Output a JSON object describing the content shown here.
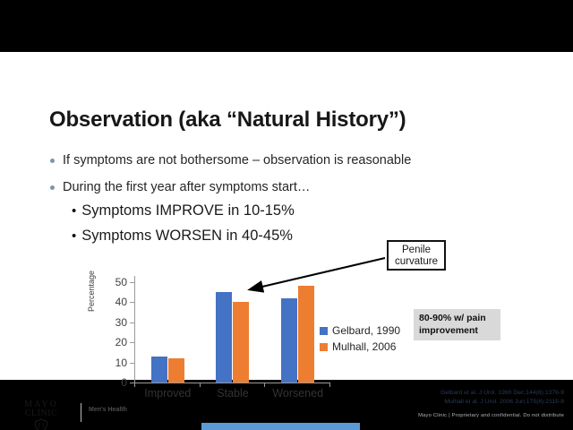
{
  "slide": {
    "title": "Observation (aka “Natural History”)",
    "bullets": [
      {
        "text": "If symptoms are not bothersome – observation is reasonable"
      },
      {
        "text": "During the first year after symptoms start…"
      }
    ],
    "sub_bullets": [
      {
        "text": "Symptoms IMPROVE in 10-15%"
      },
      {
        "text": "Symptoms WORSEN in 40-45%"
      }
    ],
    "callout": {
      "text": "Penile\ncurvature"
    },
    "highlight_box": {
      "text": "80-90% w/ pain\nimprovement"
    },
    "citations": [
      "Gelbard et al. J Urol. 1990 Dec;144(6):1376-9",
      "Mulhall et al. J Urol. 2006 Jun;175(6):2115-8"
    ],
    "footer": "Mayo Clinic  |  Proprietary and confidential. Do not distribute",
    "logo": {
      "line1": "MAYO",
      "line2": "CLINIC",
      "tagline": "Men's Health"
    }
  },
  "chart_data": {
    "type": "bar",
    "title": "",
    "categories": [
      "Improved",
      "Stable",
      "Worsened"
    ],
    "series": [
      {
        "name": "Gelbard, 1990",
        "color": "#4472C4",
        "values": [
          13,
          45,
          42
        ]
      },
      {
        "name": "Mulhall, 2006",
        "color": "#ED7D31",
        "values": [
          12,
          40,
          48
        ]
      }
    ],
    "xlabel": "",
    "ylabel": "Percentage",
    "ylim": [
      0,
      50
    ],
    "yticks": [
      0,
      10,
      20,
      30,
      40,
      50
    ],
    "grid": false,
    "legend_position": "right"
  },
  "colors": {
    "letterbox": "#000000",
    "slide_bg": "#ffffff",
    "series_blue": "#4472C4",
    "series_orange": "#ED7D31",
    "highlight_bg": "#d9d9d9",
    "bottom_bar_blue": "#5B9BD5",
    "bullet_dot": "#7E96AC"
  }
}
